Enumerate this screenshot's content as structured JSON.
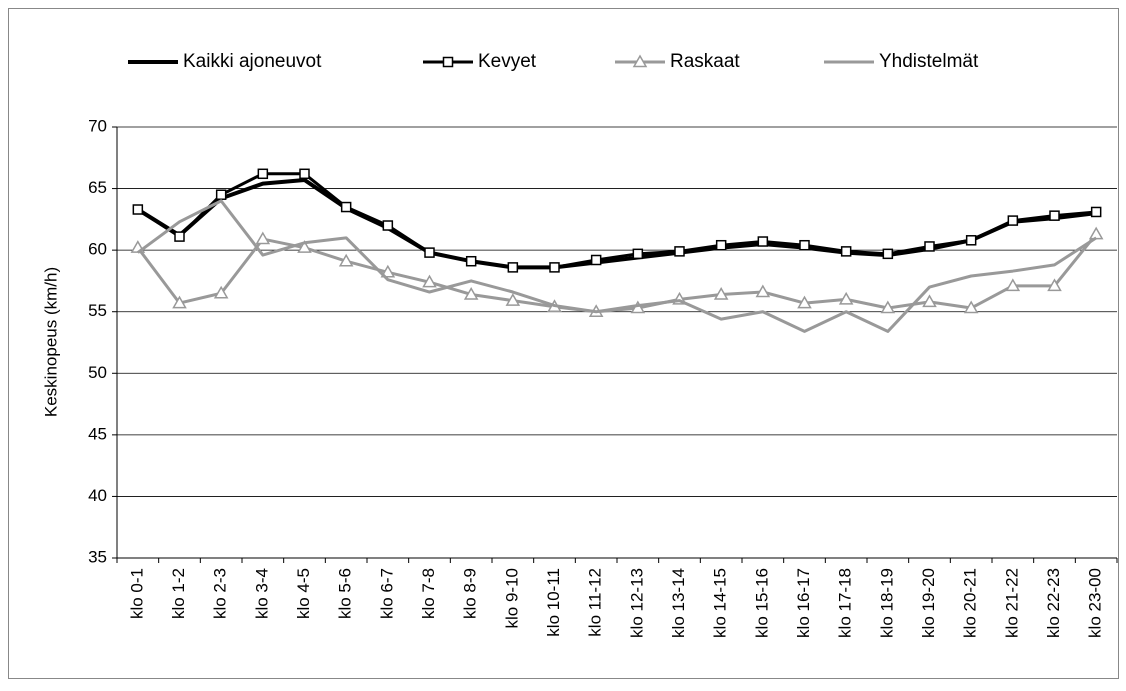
{
  "chart_data": {
    "type": "line",
    "y_label": "Keskinopeus (km/h)",
    "categories": [
      "klo 0-1",
      "klo 1-2",
      "klo 2-3",
      "klo 3-4",
      "klo 4-5",
      "klo 5-6",
      "klo 6-7",
      "klo 7-8",
      "klo 8-9",
      "klo 9-10",
      "klo 10-11",
      "klo 11-12",
      "klo 12-13",
      "klo 13-14",
      "klo 14-15",
      "klo 15-16",
      "klo 16-17",
      "klo 17-18",
      "klo 18-19",
      "klo 19-20",
      "klo 20-21",
      "klo 21-22",
      "klo 22-23",
      "klo 23-00"
    ],
    "series": [
      {
        "name": "Kaikki ajoneuvot",
        "color": "#000000",
        "marker": null,
        "values": [
          63.3,
          61.2,
          64.2,
          65.4,
          65.7,
          63.4,
          61.8,
          59.8,
          59.1,
          58.6,
          58.6,
          59.0,
          59.4,
          59.8,
          60.2,
          60.5,
          60.2,
          59.8,
          59.6,
          60.1,
          60.8,
          62.3,
          62.6,
          63.0
        ]
      },
      {
        "name": "Kevyet",
        "color": "#000000",
        "marker": "square",
        "values": [
          63.3,
          61.1,
          64.5,
          66.2,
          66.2,
          63.5,
          62.0,
          59.8,
          59.1,
          58.6,
          58.6,
          59.2,
          59.7,
          59.9,
          60.4,
          60.7,
          60.4,
          59.9,
          59.7,
          60.3,
          60.8,
          62.4,
          62.8,
          63.1
        ]
      },
      {
        "name": "Raskaat",
        "color": "#999999",
        "marker": "triangle",
        "values": [
          60.2,
          55.7,
          56.5,
          60.9,
          60.2,
          59.1,
          58.2,
          57.4,
          56.4,
          55.9,
          55.4,
          55.0,
          55.3,
          56.0,
          56.4,
          56.6,
          55.7,
          56.0,
          55.3,
          55.8,
          55.3,
          57.1,
          57.1,
          61.3
        ]
      },
      {
        "name": "Yhdistelmät",
        "color": "#999999",
        "marker": null,
        "values": [
          59.8,
          62.3,
          64.0,
          59.6,
          60.6,
          61.0,
          57.6,
          56.6,
          57.5,
          56.6,
          55.5,
          55.0,
          55.5,
          55.9,
          54.4,
          55.0,
          53.4,
          55.0,
          53.4,
          57.0,
          57.9,
          58.3,
          58.8,
          61.0
        ]
      }
    ],
    "ylim": [
      35,
      70
    ],
    "yticks": [
      35,
      40,
      45,
      50,
      55,
      60,
      65,
      70
    ],
    "grid": true,
    "legend": "top"
  }
}
